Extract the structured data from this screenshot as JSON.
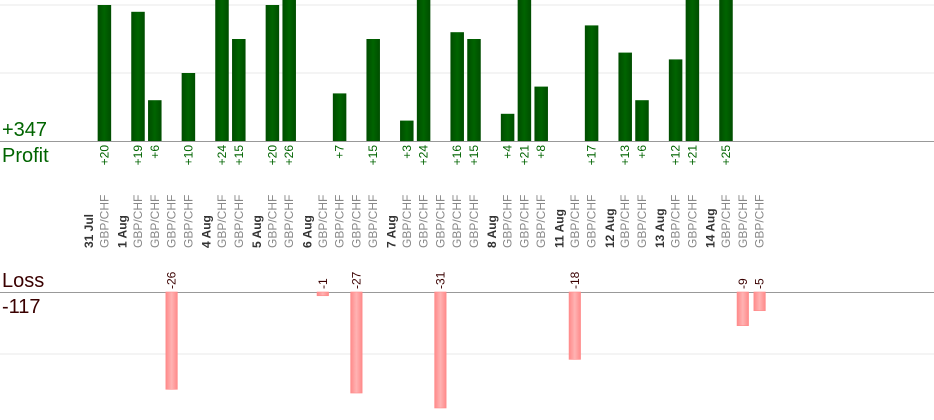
{
  "summary": {
    "profit_total": "+347",
    "profit_label": "Profit",
    "loss_label": "Loss",
    "loss_total": "-117"
  },
  "colors": {
    "profit_bar": "#006400",
    "profit_bar_dark": "#004d00",
    "profit_text": "#006400",
    "loss_bar": "#ffb3b3",
    "loss_bar_edge": "#ff8a8a",
    "loss_text": "#3a0000",
    "date_text": "#333333",
    "pair_text": "#888888",
    "grid": "#e8e8e8",
    "baseline": "#999999"
  },
  "chart_data": {
    "type": "bar",
    "scale_max": 20,
    "days": [
      {
        "date": "31 Jul",
        "trades": [
          {
            "pair": "GBP/CHF",
            "value": 20,
            "label": "+20"
          }
        ]
      },
      {
        "date": "1 Aug",
        "trades": [
          {
            "pair": "GBP/CHF",
            "value": 19,
            "label": "+19"
          },
          {
            "pair": "GBP/CHF",
            "value": 6,
            "label": "+6"
          },
          {
            "pair": "GBP/CHF",
            "value": -26,
            "label": "-26"
          },
          {
            "pair": "GBP/CHF",
            "value": 10,
            "label": "+10"
          }
        ]
      },
      {
        "date": "4 Aug",
        "trades": [
          {
            "pair": "GBP/CHF",
            "value": 24,
            "label": "+24"
          },
          {
            "pair": "GBP/CHF",
            "value": 15,
            "label": "+15"
          }
        ]
      },
      {
        "date": "5 Aug",
        "trades": [
          {
            "pair": "GBP/CHF",
            "value": 20,
            "label": "+20"
          },
          {
            "pair": "GBP/CHF",
            "value": 26,
            "label": "+26"
          }
        ]
      },
      {
        "date": "6 Aug",
        "trades": [
          {
            "pair": "GBP/CHF",
            "value": -1,
            "label": "-1"
          },
          {
            "pair": "GBP/CHF",
            "value": 7,
            "label": "+7"
          },
          {
            "pair": "GBP/CHF",
            "value": -27,
            "label": "-27"
          },
          {
            "pair": "GBP/CHF",
            "value": 15,
            "label": "+15"
          }
        ]
      },
      {
        "date": "7 Aug",
        "trades": [
          {
            "pair": "GBP/CHF",
            "value": 3,
            "label": "+3"
          },
          {
            "pair": "GBP/CHF",
            "value": 24,
            "label": "+24"
          },
          {
            "pair": "GBP/CHF",
            "value": -31,
            "label": "-31"
          },
          {
            "pair": "GBP/CHF",
            "value": 16,
            "label": "+16"
          },
          {
            "pair": "GBP/CHF",
            "value": 15,
            "label": "+15"
          }
        ]
      },
      {
        "date": "8 Aug",
        "trades": [
          {
            "pair": "GBP/CHF",
            "value": 4,
            "label": "+4"
          },
          {
            "pair": "GBP/CHF",
            "value": 21,
            "label": "+21"
          },
          {
            "pair": "GBP/CHF",
            "value": 8,
            "label": "+8"
          }
        ]
      },
      {
        "date": "11 Aug",
        "trades": [
          {
            "pair": "GBP/CHF",
            "value": -18,
            "label": "-18"
          },
          {
            "pair": "GBP/CHF",
            "value": 17,
            "label": "+17"
          }
        ]
      },
      {
        "date": "12 Aug",
        "trades": [
          {
            "pair": "GBP/CHF",
            "value": 13,
            "label": "+13"
          },
          {
            "pair": "GBP/CHF",
            "value": 6,
            "label": "+6"
          }
        ]
      },
      {
        "date": "13 Aug",
        "trades": [
          {
            "pair": "GBP/CHF",
            "value": 12,
            "label": "+12"
          },
          {
            "pair": "GBP/CHF",
            "value": 21,
            "label": "+21"
          }
        ]
      },
      {
        "date": "14 Aug",
        "trades": [
          {
            "pair": "GBP/CHF",
            "value": 25,
            "label": "+25"
          },
          {
            "pair": "GBP/CHF",
            "value": -9,
            "label": "-9"
          },
          {
            "pair": "GBP/CHF",
            "value": -5,
            "label": "-5"
          }
        ]
      }
    ]
  }
}
